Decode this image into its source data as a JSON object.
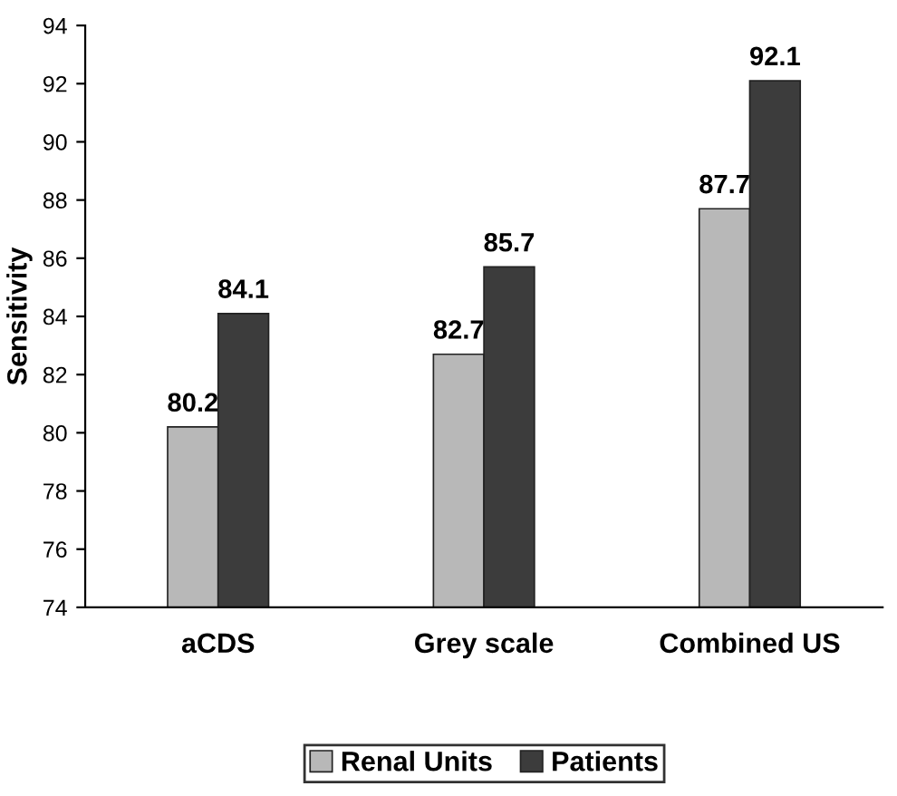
{
  "chart_data": {
    "type": "bar",
    "ylabel": "Sensitivity",
    "categories": [
      "aCDS",
      "Grey scale",
      "Combined US"
    ],
    "series": [
      {
        "name": "Renal Units",
        "color": "#b8b8b8",
        "values": [
          80.2,
          82.7,
          87.7
        ]
      },
      {
        "name": "Patients",
        "color": "#3c3c3c",
        "values": [
          84.1,
          85.7,
          92.1
        ]
      }
    ],
    "ylim": [
      74,
      94
    ],
    "yticks": [
      74,
      76,
      78,
      80,
      82,
      84,
      86,
      88,
      90,
      92,
      94
    ],
    "data_labels": true,
    "grid": false,
    "legend": "bottom"
  }
}
